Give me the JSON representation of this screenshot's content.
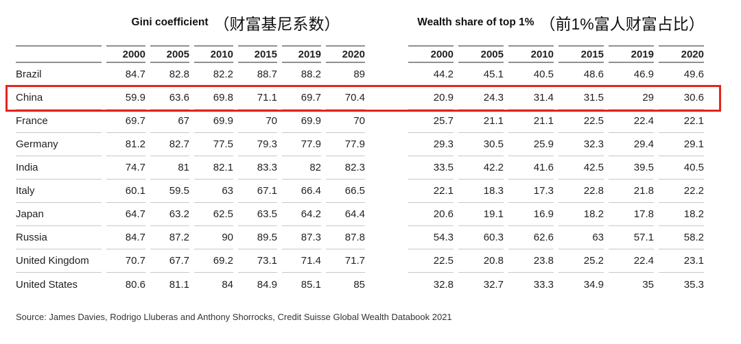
{
  "chart_data": {
    "type": "table",
    "column_groups": [
      {
        "title_en": "Gini coefficient",
        "title_zh": "（财富基尼系数）",
        "years": [
          "2000",
          "2005",
          "2010",
          "2015",
          "2019",
          "2020"
        ]
      },
      {
        "title_en": "Wealth share of top 1%",
        "title_zh": "（前1%富人财富占比）",
        "years": [
          "2000",
          "2005",
          "2010",
          "2015",
          "2019",
          "2020"
        ]
      }
    ],
    "rows": [
      {
        "country": "Brazil",
        "highlighted": false,
        "gini": [
          84.7,
          82.8,
          82.2,
          88.7,
          88.2,
          89
        ],
        "wealth": [
          44.2,
          45.1,
          40.5,
          48.6,
          46.9,
          49.6
        ]
      },
      {
        "country": "China",
        "highlighted": true,
        "gini": [
          59.9,
          63.6,
          69.8,
          71.1,
          69.7,
          70.4
        ],
        "wealth": [
          20.9,
          24.3,
          31.4,
          31.5,
          29,
          30.6
        ]
      },
      {
        "country": "France",
        "highlighted": false,
        "gini": [
          69.7,
          67,
          69.9,
          70,
          69.9,
          70
        ],
        "wealth": [
          25.7,
          21.1,
          21.1,
          22.5,
          22.4,
          22.1
        ]
      },
      {
        "country": "Germany",
        "highlighted": false,
        "gini": [
          81.2,
          82.7,
          77.5,
          79.3,
          77.9,
          77.9
        ],
        "wealth": [
          29.3,
          30.5,
          25.9,
          32.3,
          29.4,
          29.1
        ]
      },
      {
        "country": "India",
        "highlighted": false,
        "gini": [
          74.7,
          81,
          82.1,
          83.3,
          82,
          82.3
        ],
        "wealth": [
          33.5,
          42.2,
          41.6,
          42.5,
          39.5,
          40.5
        ]
      },
      {
        "country": "Italy",
        "highlighted": false,
        "gini": [
          60.1,
          59.5,
          63,
          67.1,
          66.4,
          66.5
        ],
        "wealth": [
          22.1,
          18.3,
          17.3,
          22.8,
          21.8,
          22.2
        ]
      },
      {
        "country": "Japan",
        "highlighted": false,
        "gini": [
          64.7,
          63.2,
          62.5,
          63.5,
          64.2,
          64.4
        ],
        "wealth": [
          20.6,
          19.1,
          16.9,
          18.2,
          17.8,
          18.2
        ]
      },
      {
        "country": "Russia",
        "highlighted": false,
        "gini": [
          84.7,
          87.2,
          90,
          89.5,
          87.3,
          87.8
        ],
        "wealth": [
          54.3,
          60.3,
          62.6,
          63,
          57.1,
          58.2
        ]
      },
      {
        "country": "United Kingdom",
        "highlighted": false,
        "gini": [
          70.7,
          67.7,
          69.2,
          73.1,
          71.4,
          71.7
        ],
        "wealth": [
          22.5,
          20.8,
          23.8,
          25.2,
          22.4,
          23.1
        ]
      },
      {
        "country": "United States",
        "highlighted": false,
        "gini": [
          80.6,
          81.1,
          84,
          84.9,
          85.1,
          85
        ],
        "wealth": [
          32.8,
          32.7,
          33.3,
          34.9,
          35,
          35.3
        ]
      }
    ],
    "highlight": {
      "country": "China"
    },
    "layout": {
      "legend": "none",
      "grid": "horizontal-row-rules"
    }
  },
  "source": "Source: James Davies, Rodrigo Lluberas and Anthony Shorrocks, Credit Suisse Global Wealth Databook 2021",
  "colors": {
    "highlight_border": "#e3241d",
    "header_line": "#8f8f8f",
    "row_line": "#c6c6c6",
    "text": "#1f1f1f",
    "background": "#ffffff"
  }
}
